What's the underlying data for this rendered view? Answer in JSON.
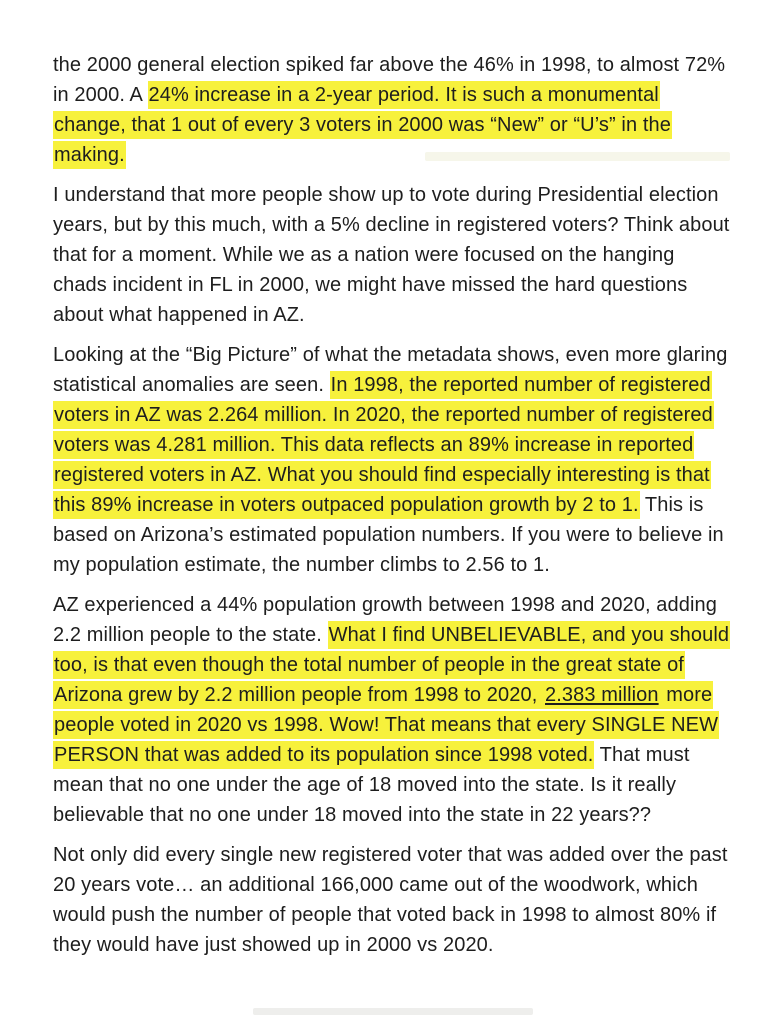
{
  "page": {
    "background_color": "#ffffff",
    "text_color": "#1e1e1e",
    "highlight_color": "#f7f13c"
  },
  "document": {
    "paragraphs": [
      {
        "segments": [
          {
            "text": "the 2000 general election spiked far above the 46% in 1998, to almost 72% in 2000. A ",
            "highlight": false
          },
          {
            "text": "24% increase in a 2-year period. It is such a monumental change, that 1 out of every 3 voters in 2000 was “New” or “U’s” in the making.",
            "highlight": true
          }
        ]
      },
      {
        "segments": [
          {
            "text": "I understand that more people show up to vote during Presidential election years, but by this much, with a 5% decline in registered voters? Think about that for a moment. While we as a nation were focused on the hanging chads incident in FL in 2000, we might have missed the hard questions about what happened in AZ.",
            "highlight": false
          }
        ]
      },
      {
        "segments": [
          {
            "text": "Looking at the “Big Picture” of what the metadata shows, even more glaring statistical anomalies are seen. ",
            "highlight": false
          },
          {
            "text": "In 1998, the reported number of registered voters in AZ was 2.264 million. In 2020, the reported number of registered voters was 4.281 million. This data reflects an 89% increase in reported registered voters in AZ. What you should find especially interesting is that this 89% increase in voters outpaced population growth by 2 to 1.",
            "highlight": true
          },
          {
            "text": " This is based on Arizona’s estimated population numbers. If you were to believe in my population estimate, the number climbs to 2.56 to 1.",
            "highlight": false
          }
        ]
      },
      {
        "segments": [
          {
            "text": "AZ experienced a 44% population growth between 1998 and 2020, adding 2.2 million people to the state. ",
            "highlight": false
          },
          {
            "text": "What I find UNBELIEVABLE, and you should too, is that even though the total number of people in the great state of Arizona grew by 2.2 million people from 1998 to 2020, ",
            "highlight": true
          },
          {
            "text": "2.383 million",
            "highlight": true,
            "underline": true
          },
          {
            "text": " more people voted in 2020 vs 1998. Wow! That means that every SINGLE NEW PERSON that was added to its population since 1998 voted.",
            "highlight": true
          },
          {
            "text": " That must mean that no one under the age of 18 moved into the state. Is it really believable that no one under 18 moved into the state in 22 years??",
            "highlight": false
          }
        ]
      },
      {
        "segments": [
          {
            "text": "Not only did every single new registered voter that was added over the past 20 years vote… an additional 166,000 came out of the woodwork, which would push the number of people that voted back in 1998 to almost 80% if they would have just showed up in 2000 vs 2020.",
            "highlight": false
          }
        ]
      }
    ]
  }
}
